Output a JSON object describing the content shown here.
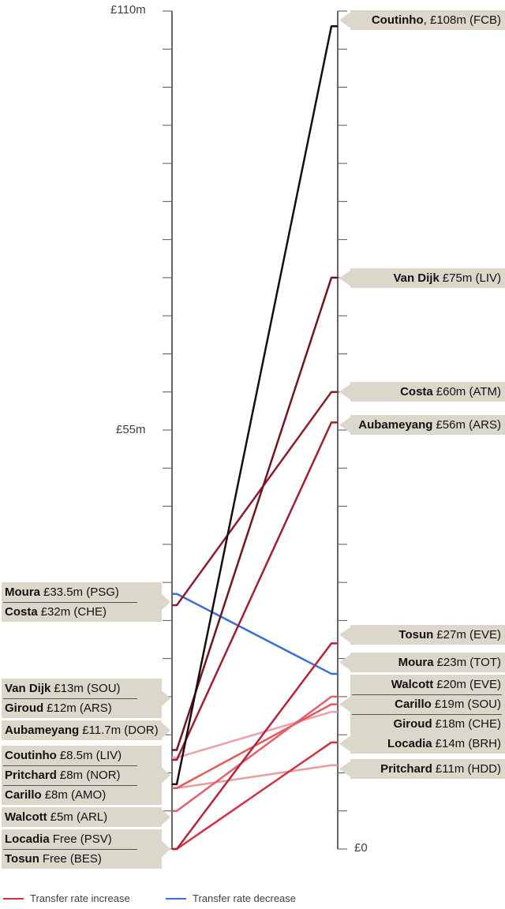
{
  "chart_data": {
    "type": "slope",
    "ylim": [
      0,
      110
    ],
    "tick_step": 5,
    "axis_labels": {
      "top": "£110m",
      "middle": "£55m",
      "bottom": "£0"
    },
    "grid": false,
    "players": [
      {
        "name": "Coutinho",
        "from_value": 8.5,
        "from_text": "£8.5m (LIV)",
        "to_value": 108,
        "to_text": ", £108m (FCB)",
        "color": "#1a0c0e"
      },
      {
        "name": "Van Dijk",
        "from_value": 13,
        "from_text": "£13m (SOU)",
        "to_value": 75,
        "to_text": "£75m (LIV)",
        "color": "#6e1622"
      },
      {
        "name": "Costa",
        "from_value": 32,
        "from_text": "£32m (CHE)",
        "to_value": 60,
        "to_text": "£60m (ATM)",
        "color": "#8c1c2c"
      },
      {
        "name": "Aubameyang",
        "from_value": 11.7,
        "from_text": "£11.7m (DOR)",
        "to_value": 56,
        "to_text": "£56m (ARS)",
        "color": "#a01f32"
      },
      {
        "name": "Tosun",
        "from_value": 0,
        "from_text": "Free (BES)",
        "to_value": 27,
        "to_text": "£27m (EVE)",
        "color": "#b8233c"
      },
      {
        "name": "Moura",
        "from_value": 33.5,
        "from_text": "£33.5m (PSG)",
        "to_value": 23,
        "to_text": "£23m (TOT)",
        "color": "#3b6fd6"
      },
      {
        "name": "Walcott",
        "from_value": 5,
        "from_text": "£5m (ARL)",
        "to_value": 20,
        "to_text": "£20m (EVE)",
        "color": "#e0616e"
      },
      {
        "name": "Carillo",
        "from_value": 8,
        "from_text": "£8m (AMO)",
        "to_value": 19,
        "to_text": "£19m (SOU)",
        "color": "#e4585a"
      },
      {
        "name": "Giroud",
        "from_value": 12,
        "from_text": "£12m (ARS)",
        "to_value": 18,
        "to_text": "£18m (CHE)",
        "color": "#eda0a6"
      },
      {
        "name": "Locadia",
        "from_value": 0,
        "from_text": "Free (PSV)",
        "to_value": 14,
        "to_text": "£14m (BRH)",
        "color": "#cf3345"
      },
      {
        "name": "Pritchard",
        "from_value": 8,
        "from_text": "£8m (NOR)",
        "to_value": 11,
        "to_text": "£11m (HDD)",
        "color": "#ec9a9c"
      }
    ],
    "legend": [
      {
        "label": "Transfer rate increase",
        "color": "#d0313f"
      },
      {
        "label": "Transfer rate decrease",
        "color": "#3b6fd6"
      }
    ]
  }
}
